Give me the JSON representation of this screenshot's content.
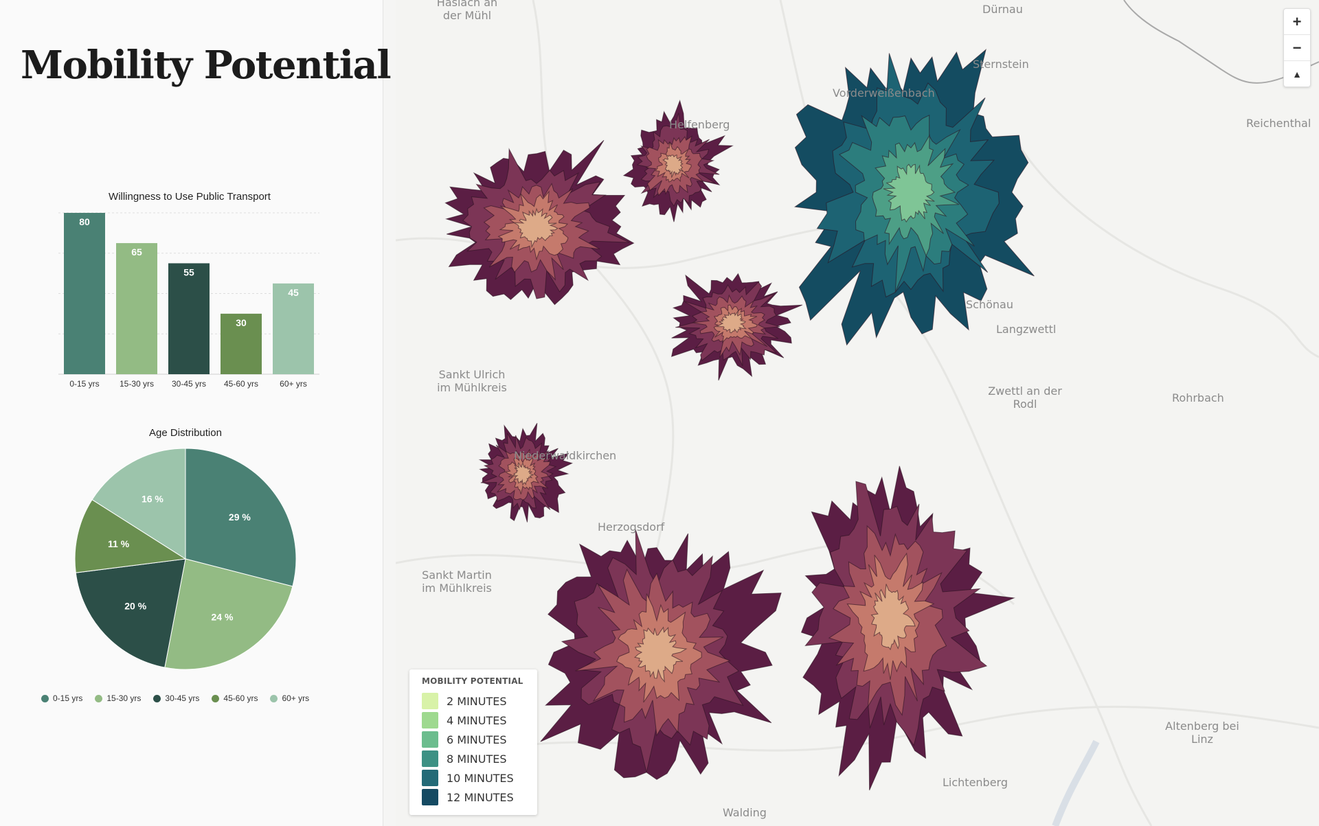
{
  "page": {
    "title": "Mobility Potential"
  },
  "chart_data": [
    {
      "type": "bar",
      "title": "Willingness to Use Public Transport",
      "categories": [
        "0-15 yrs",
        "15-30 yrs",
        "30-45 yrs",
        "45-60 yrs",
        "60+ yrs"
      ],
      "values": [
        80,
        65,
        55,
        30,
        45
      ],
      "colors": [
        "#4a8174",
        "#93bb84",
        "#2c4f48",
        "#6a8f50",
        "#9cc4ab"
      ],
      "ylim": [
        0,
        80
      ],
      "grid": true
    },
    {
      "type": "pie",
      "title": "Age Distribution",
      "labels": [
        "0-15 yrs",
        "15-30 yrs",
        "30-45 yrs",
        "45-60 yrs",
        "60+ yrs"
      ],
      "values": [
        29,
        24,
        20,
        11,
        16
      ],
      "value_labels": [
        "29 %",
        "24 %",
        "20 %",
        "11 %",
        "16 %"
      ],
      "colors": [
        "#4a8174",
        "#93bb84",
        "#2c4f48",
        "#6a8f50",
        "#9cc4ab"
      ],
      "legend": "bottom"
    }
  ],
  "map": {
    "place_labels": [
      {
        "text": "Haslach an der Mühl"
      },
      {
        "text": "Dürnau"
      },
      {
        "text": "Sternstein"
      },
      {
        "text": "Vorderweißenbach"
      },
      {
        "text": "Helfenberg"
      },
      {
        "text": "Reichenthal"
      },
      {
        "text": "Schönau"
      },
      {
        "text": "Langzwettl"
      },
      {
        "text": "Sankt Ulrich im Mühlkreis"
      },
      {
        "text": "Zwettl an der Rodl"
      },
      {
        "text": "Rohrbach"
      },
      {
        "text": "Niederwaldkirchen"
      },
      {
        "text": "Herzogsdorf"
      },
      {
        "text": "Sankt Martin im Mühlkreis"
      },
      {
        "text": "Altenberg bei Linz"
      },
      {
        "text": "Lichtenberg"
      },
      {
        "text": "Walding"
      }
    ],
    "zoom": {
      "in_label": "+",
      "out_label": "−",
      "compass_label": "▲"
    },
    "legend": {
      "title": "MOBILITY POTENTIAL",
      "items": [
        {
          "label": "2 MINUTES",
          "color": "#d8f2a8"
        },
        {
          "label": "4 MINUTES",
          "color": "#9ed98f"
        },
        {
          "label": "6 MINUTES",
          "color": "#6cbd8e"
        },
        {
          "label": "8 MINUTES",
          "color": "#3d9184"
        },
        {
          "label": "10 MINUTES",
          "color": "#236a77"
        },
        {
          "label": "12 MINUTES",
          "color": "#154a62"
        }
      ]
    },
    "isochrone_colors": {
      "warm": [
        "#5b1e44",
        "#7c3556",
        "#a2525e",
        "#c57a6c",
        "#ddaa88"
      ],
      "teal": [
        "#144c61",
        "#1d6373",
        "#2c7d7d",
        "#4d9f86",
        "#7fc596"
      ]
    }
  }
}
